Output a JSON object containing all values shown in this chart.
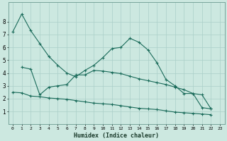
{
  "xlabel": "Humidex (Indice chaleur)",
  "background_color": "#cce8e0",
  "grid_color": "#aacfc8",
  "line_color": "#1a6b5a",
  "series1_x": [
    0,
    1,
    2,
    3,
    4,
    5,
    6,
    7,
    8,
    9,
    10,
    11,
    12,
    13,
    14,
    15,
    16,
    17,
    18,
    19,
    20,
    21,
    22
  ],
  "series1_y": [
    7.2,
    8.6,
    7.3,
    6.3,
    5.3,
    4.6,
    4.0,
    3.7,
    4.2,
    4.6,
    5.2,
    5.9,
    6.0,
    6.7,
    6.4,
    5.8,
    4.8,
    3.5,
    3.0,
    2.4,
    2.4,
    1.3,
    1.2
  ],
  "series2_x": [
    1,
    2,
    3,
    4,
    5,
    6,
    7,
    8,
    9,
    10,
    11,
    12,
    13,
    14,
    15,
    16,
    17,
    18,
    19,
    20,
    21,
    22
  ],
  "series2_y": [
    4.45,
    4.3,
    2.3,
    2.9,
    3.0,
    3.1,
    3.85,
    3.85,
    4.2,
    4.15,
    4.05,
    3.95,
    3.75,
    3.55,
    3.4,
    3.25,
    3.1,
    2.9,
    2.7,
    2.4,
    2.3,
    1.2
  ],
  "series3_x": [
    0,
    1,
    2,
    3,
    4,
    5,
    6,
    7,
    8,
    9,
    10,
    11,
    12,
    13,
    14,
    15,
    16,
    17,
    18,
    19,
    20,
    21,
    22
  ],
  "series3_y": [
    2.5,
    2.45,
    2.2,
    2.15,
    2.05,
    2.0,
    1.95,
    1.85,
    1.75,
    1.65,
    1.6,
    1.55,
    1.45,
    1.35,
    1.25,
    1.2,
    1.15,
    1.05,
    0.95,
    0.9,
    0.85,
    0.8,
    0.75
  ],
  "xlim": [
    -0.5,
    23.5
  ],
  "ylim": [
    0,
    9.5
  ],
  "yticks": [
    1,
    2,
    3,
    4,
    5,
    6,
    7,
    8
  ],
  "xticks": [
    0,
    1,
    2,
    3,
    4,
    5,
    6,
    7,
    8,
    9,
    10,
    11,
    12,
    13,
    14,
    15,
    16,
    17,
    18,
    19,
    20,
    21,
    22,
    23
  ]
}
